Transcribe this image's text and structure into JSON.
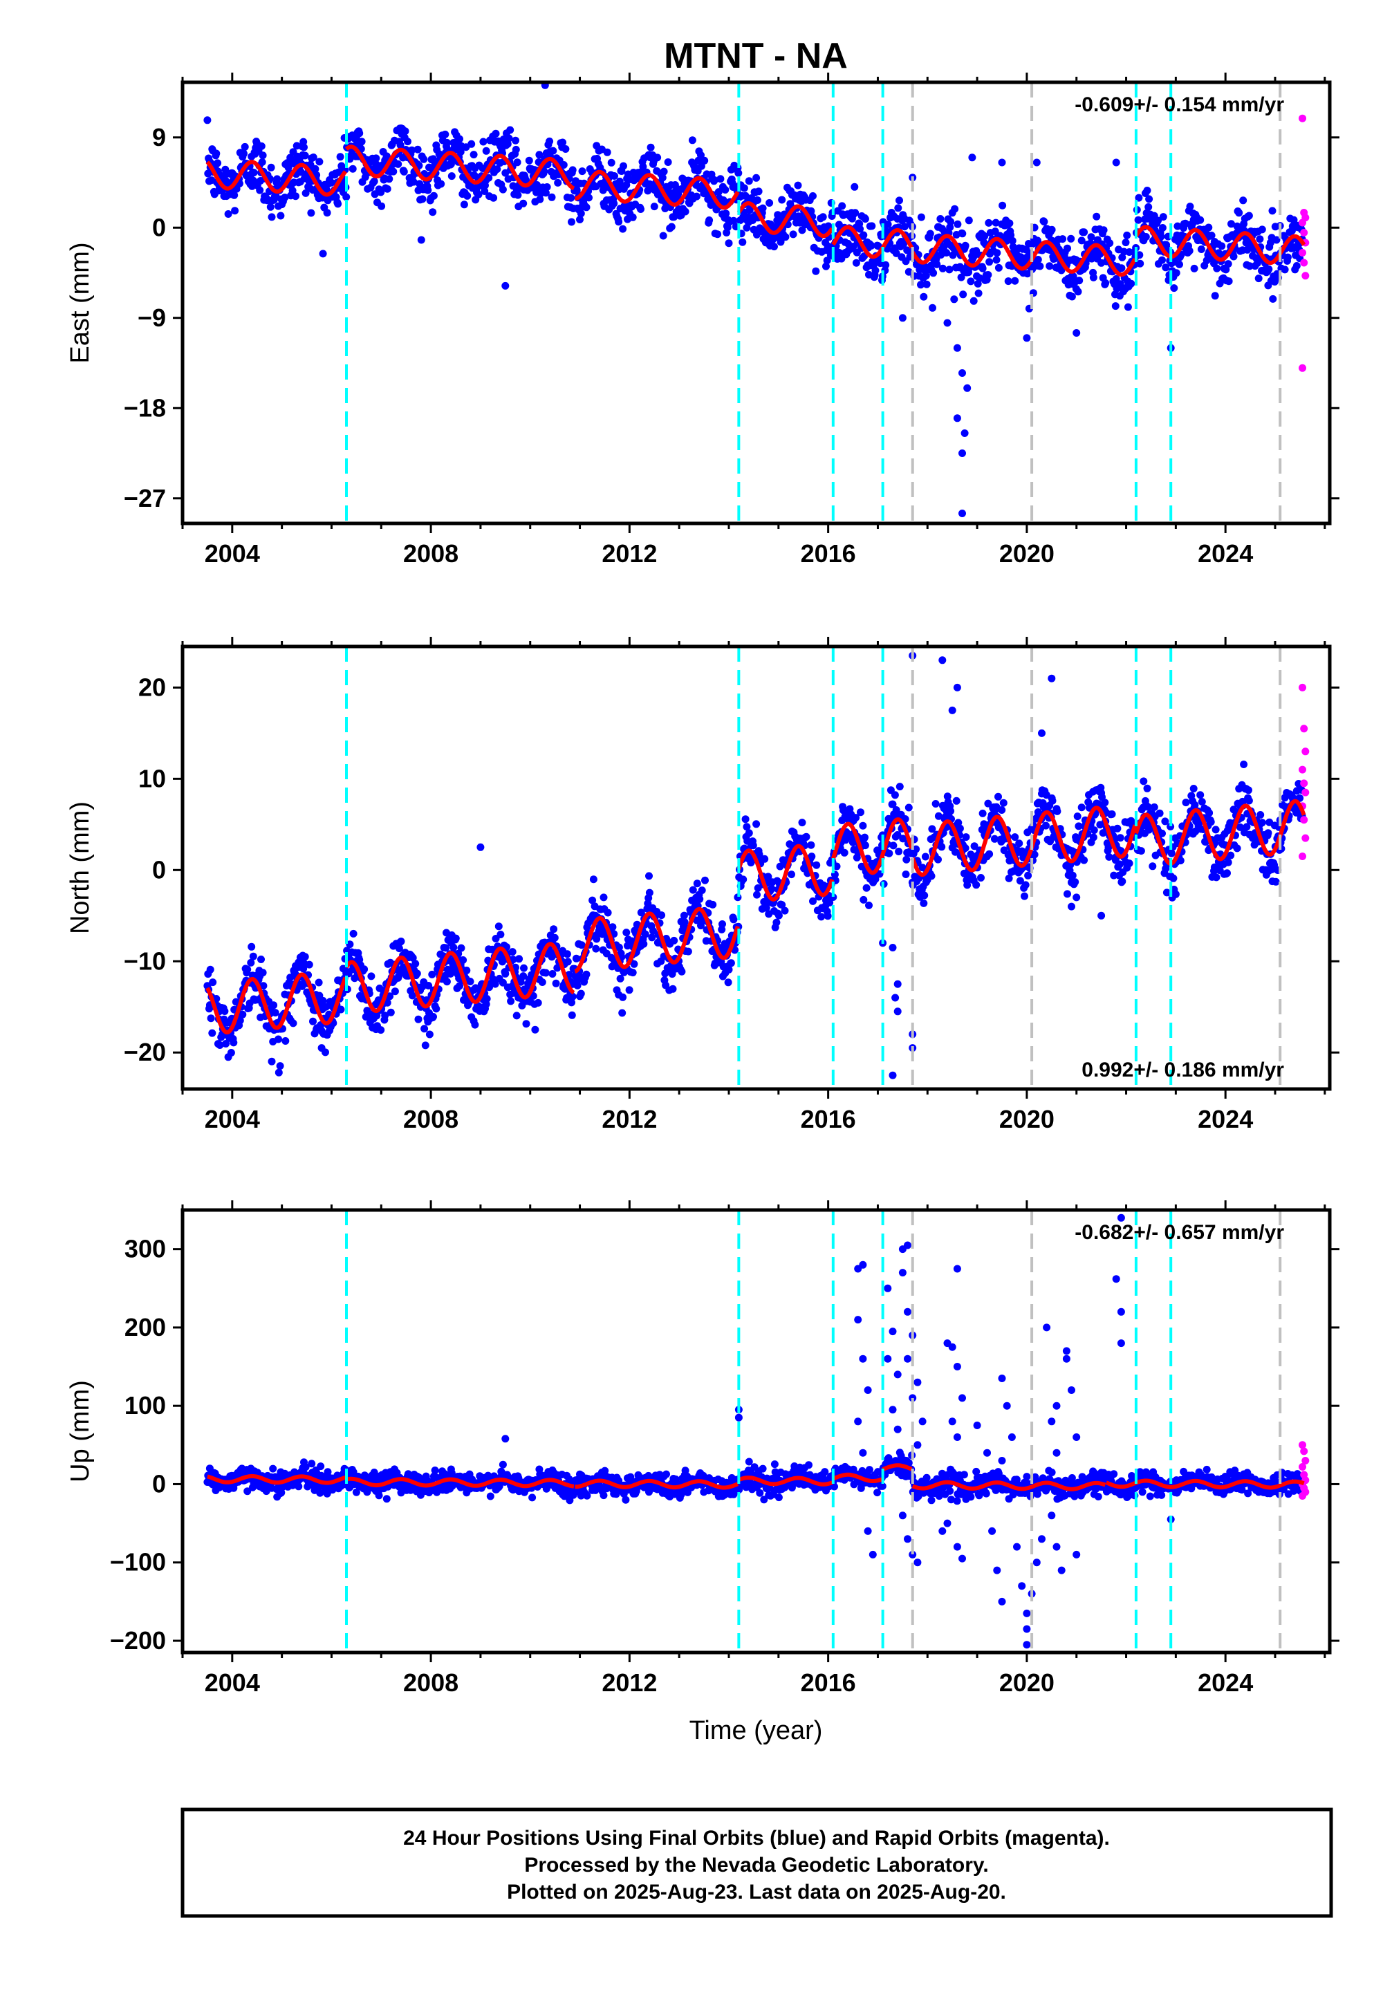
{
  "title": "MTNT - NA",
  "xlabel": "Time (year)",
  "footer": {
    "line1": "24 Hour Positions Using Final Orbits (blue) and Rapid Orbits (magenta).",
    "line2": "Processed by the Nevada Geodetic Laboratory.",
    "line3": "Plotted on 2025-Aug-23. Last data on 2025-Aug-20."
  },
  "colors": {
    "final": "#0000ff",
    "rapid": "#ff00ff",
    "model": "#ff0000",
    "equipment_change": "#00ffff",
    "earthquake": "#c0c0c0"
  },
  "chart_data": [
    {
      "type": "scatter",
      "panel": "east",
      "ylabel": "East (mm)",
      "xlim": [
        2003.0,
        2026.1
      ],
      "ylim": [
        -29.5,
        14.5
      ],
      "xticks": [
        2004,
        2008,
        2012,
        2016,
        2020,
        2024
      ],
      "yticks": [
        9,
        0,
        -9,
        -18,
        -27
      ],
      "ytick_labels": [
        "9",
        "0",
        "−9",
        "−18",
        "−27"
      ],
      "rate_label": "-0.609+/- 0.154 mm/yr",
      "rate_position": "top-right",
      "equipment_change_lines": [
        2006.3,
        2014.2,
        2016.1,
        2017.1,
        2022.2,
        2022.9
      ],
      "earthquake_lines": [
        2017.7,
        2020.1,
        2025.1
      ],
      "model_offsets": [
        {
          "start": 2003.5,
          "end": 2006.3,
          "level": 5.0
        },
        {
          "start": 2006.3,
          "end": 2010.9,
          "level": 6.0
        },
        {
          "start": 2010.9,
          "end": 2014.2,
          "level": 3.8
        },
        {
          "start": 2014.2,
          "end": 2016.1,
          "level": 0.8
        },
        {
          "start": 2016.1,
          "end": 2017.7,
          "level": -1.5
        },
        {
          "start": 2017.7,
          "end": 2022.2,
          "level": -2.7
        },
        {
          "start": 2022.2,
          "end": 2025.6,
          "level": -1.8
        }
      ],
      "rate_mm_per_yr": -0.609,
      "seasonal_amplitude": 1.4,
      "scatter_sd": 1.5,
      "rapid": [
        10.9,
        1.5,
        1.0,
        0.5,
        -0.5,
        -1.5,
        -2.5,
        -3.5,
        -4.8,
        -14.0
      ],
      "outliers": [
        {
          "x": 2009.5,
          "y": -5.8
        },
        {
          "x": 2010.3,
          "y": 14.2
        },
        {
          "x": 2017.5,
          "y": -9.0
        },
        {
          "x": 2018.1,
          "y": -8.0
        },
        {
          "x": 2018.4,
          "y": -9.5
        },
        {
          "x": 2018.6,
          "y": -12.0
        },
        {
          "x": 2018.7,
          "y": -14.5
        },
        {
          "x": 2018.8,
          "y": -16.0
        },
        {
          "x": 2018.6,
          "y": -19.0
        },
        {
          "x": 2018.75,
          "y": -20.5
        },
        {
          "x": 2018.7,
          "y": -22.5
        },
        {
          "x": 2018.7,
          "y": -28.5
        },
        {
          "x": 2020.0,
          "y": -11.0
        },
        {
          "x": 2021.0,
          "y": -10.5
        },
        {
          "x": 2022.9,
          "y": -12.0
        },
        {
          "x": 2018.9,
          "y": 7.0
        },
        {
          "x": 2019.5,
          "y": 6.5
        },
        {
          "x": 2020.2,
          "y": 6.5
        },
        {
          "x": 2021.8,
          "y": 6.5
        },
        {
          "x": 2017.7,
          "y": 5.0
        }
      ]
    },
    {
      "type": "scatter",
      "panel": "north",
      "ylabel": "North (mm)",
      "xlim": [
        2003.0,
        2026.1
      ],
      "ylim": [
        -24.0,
        24.5
      ],
      "xticks": [
        2004,
        2008,
        2012,
        2016,
        2020,
        2024
      ],
      "yticks": [
        20,
        10,
        0,
        -10,
        -20
      ],
      "ytick_labels": [
        "20",
        "10",
        "0",
        "−10",
        "−20"
      ],
      "rate_label": "0.992+/- 0.186 mm/yr",
      "rate_position": "bottom-right",
      "equipment_change_lines": [
        2006.3,
        2014.2,
        2016.1,
        2017.1,
        2022.2,
        2022.9
      ],
      "earthquake_lines": [
        2017.7,
        2020.1,
        2025.1
      ],
      "model_offsets": [
        {
          "start": 2003.5,
          "end": 2006.3,
          "level": -14.5
        },
        {
          "start": 2006.3,
          "end": 2010.9,
          "level": -11.8
        },
        {
          "start": 2010.9,
          "end": 2014.2,
          "level": -7.5
        },
        {
          "start": 2014.2,
          "end": 2016.1,
          "level": -0.3
        },
        {
          "start": 2016.1,
          "end": 2017.7,
          "level": 2.5
        },
        {
          "start": 2017.7,
          "end": 2022.2,
          "level": 3.3
        },
        {
          "start": 2022.2,
          "end": 2025.6,
          "level": 4.0
        }
      ],
      "rate_mm_per_yr": 0.992,
      "seasonal_amplitude": 2.8,
      "scatter_sd": 1.6,
      "rapid": [
        20.0,
        15.5,
        13.0,
        11.0,
        9.5,
        8.5,
        7.0,
        5.5,
        3.5,
        1.5
      ],
      "outliers": [
        {
          "x": 2017.1,
          "y": -8.0
        },
        {
          "x": 2017.3,
          "y": -8.5
        },
        {
          "x": 2017.4,
          "y": -12.5
        },
        {
          "x": 2017.35,
          "y": -14.0
        },
        {
          "x": 2017.4,
          "y": -15.5
        },
        {
          "x": 2017.3,
          "y": -22.5
        },
        {
          "x": 2017.7,
          "y": -18.0
        },
        {
          "x": 2017.7,
          "y": -19.5
        },
        {
          "x": 2017.7,
          "y": 23.5
        },
        {
          "x": 2018.3,
          "y": 23.0
        },
        {
          "x": 2018.6,
          "y": 20.0
        },
        {
          "x": 2018.5,
          "y": 17.5
        },
        {
          "x": 2020.5,
          "y": 21.0
        },
        {
          "x": 2020.3,
          "y": 15.0
        },
        {
          "x": 2021.5,
          "y": -5.0
        },
        {
          "x": 2009.0,
          "y": 2.5
        },
        {
          "x": 2010.1,
          "y": -17.5
        },
        {
          "x": 2005.8,
          "y": -19.5
        },
        {
          "x": 2020.9,
          "y": -4.0
        },
        {
          "x": 2021.0,
          "y": -3.0
        }
      ]
    },
    {
      "type": "scatter",
      "panel": "up",
      "ylabel": "Up (mm)",
      "xlabel": "Time (year)",
      "xlim": [
        2003.0,
        2026.1
      ],
      "ylim": [
        -215,
        350
      ],
      "xticks": [
        2004,
        2008,
        2012,
        2016,
        2020,
        2024
      ],
      "yticks": [
        300,
        200,
        100,
        0,
        -100,
        -200
      ],
      "ytick_labels": [
        "300",
        "200",
        "100",
        "0",
        "−100",
        "−200"
      ],
      "rate_label": "-0.682+/- 0.657 mm/yr",
      "rate_position": "top-right",
      "equipment_change_lines": [
        2006.3,
        2014.2,
        2016.1,
        2017.1,
        2022.2,
        2022.9
      ],
      "earthquake_lines": [
        2017.7,
        2020.1,
        2025.1
      ],
      "model_offsets": [
        {
          "start": 2003.5,
          "end": 2006.3,
          "level": 6.0
        },
        {
          "start": 2006.3,
          "end": 2010.9,
          "level": 2.0
        },
        {
          "start": 2010.9,
          "end": 2014.2,
          "level": 0.0
        },
        {
          "start": 2014.2,
          "end": 2016.1,
          "level": 4.0
        },
        {
          "start": 2016.1,
          "end": 2017.1,
          "level": 8.0
        },
        {
          "start": 2017.1,
          "end": 2017.7,
          "level": 20.0
        },
        {
          "start": 2017.7,
          "end": 2021.6,
          "level": -2.0
        },
        {
          "start": 2021.6,
          "end": 2025.6,
          "level": 0.0
        }
      ],
      "rate_mm_per_yr": -0.682,
      "seasonal_amplitude": 4.0,
      "scatter_sd": 7.0,
      "rapid": [
        50.0,
        42.0,
        30.0,
        22.0,
        12.0,
        5.0,
        0.0,
        -5.0,
        -10.0,
        -15.0
      ],
      "outliers": [
        {
          "x": 2014.2,
          "y": 95
        },
        {
          "x": 2014.2,
          "y": 85
        },
        {
          "x": 2009.5,
          "y": 58
        },
        {
          "x": 2016.6,
          "y": 275
        },
        {
          "x": 2016.7,
          "y": 280
        },
        {
          "x": 2016.6,
          "y": 210
        },
        {
          "x": 2016.7,
          "y": 160
        },
        {
          "x": 2016.8,
          "y": 120
        },
        {
          "x": 2016.6,
          "y": 80
        },
        {
          "x": 2016.7,
          "y": 40
        },
        {
          "x": 2016.8,
          "y": -60
        },
        {
          "x": 2016.9,
          "y": -90
        },
        {
          "x": 2017.2,
          "y": 250
        },
        {
          "x": 2017.3,
          "y": 195
        },
        {
          "x": 2017.2,
          "y": 160
        },
        {
          "x": 2017.4,
          "y": 140
        },
        {
          "x": 2017.3,
          "y": 95
        },
        {
          "x": 2017.4,
          "y": 70
        },
        {
          "x": 2017.5,
          "y": 300
        },
        {
          "x": 2017.6,
          "y": 305
        },
        {
          "x": 2017.5,
          "y": 270
        },
        {
          "x": 2017.6,
          "y": 220
        },
        {
          "x": 2017.7,
          "y": 190
        },
        {
          "x": 2017.6,
          "y": 160
        },
        {
          "x": 2017.8,
          "y": 130
        },
        {
          "x": 2017.7,
          "y": 110
        },
        {
          "x": 2017.9,
          "y": 80
        },
        {
          "x": 2017.8,
          "y": 50
        },
        {
          "x": 2017.5,
          "y": -40
        },
        {
          "x": 2017.6,
          "y": -70
        },
        {
          "x": 2017.7,
          "y": -90
        },
        {
          "x": 2017.8,
          "y": -100
        },
        {
          "x": 2018.6,
          "y": 275
        },
        {
          "x": 2018.4,
          "y": 180
        },
        {
          "x": 2018.5,
          "y": 175
        },
        {
          "x": 2018.6,
          "y": 150
        },
        {
          "x": 2018.7,
          "y": 110
        },
        {
          "x": 2018.5,
          "y": 80
        },
        {
          "x": 2018.6,
          "y": 60
        },
        {
          "x": 2018.4,
          "y": -50
        },
        {
          "x": 2018.6,
          "y": -80
        },
        {
          "x": 2018.7,
          "y": -95
        },
        {
          "x": 2018.3,
          "y": -60
        },
        {
          "x": 2019.0,
          "y": 75
        },
        {
          "x": 2019.2,
          "y": 40
        },
        {
          "x": 2019.3,
          "y": -60
        },
        {
          "x": 2019.4,
          "y": -110
        },
        {
          "x": 2019.5,
          "y": -150
        },
        {
          "x": 2019.5,
          "y": 135
        },
        {
          "x": 2019.6,
          "y": 100
        },
        {
          "x": 2019.7,
          "y": 60
        },
        {
          "x": 2019.5,
          "y": 30
        },
        {
          "x": 2019.8,
          "y": -80
        },
        {
          "x": 2019.9,
          "y": -130
        },
        {
          "x": 2020.0,
          "y": -165
        },
        {
          "x": 2020.0,
          "y": -185
        },
        {
          "x": 2020.0,
          "y": -205
        },
        {
          "x": 2020.1,
          "y": -140
        },
        {
          "x": 2020.2,
          "y": -100
        },
        {
          "x": 2020.3,
          "y": -70
        },
        {
          "x": 2020.4,
          "y": 200
        },
        {
          "x": 2020.5,
          "y": 80
        },
        {
          "x": 2020.6,
          "y": 40
        },
        {
          "x": 2020.5,
          "y": -40
        },
        {
          "x": 2020.6,
          "y": -80
        },
        {
          "x": 2020.7,
          "y": -110
        },
        {
          "x": 2020.6,
          "y": 100
        },
        {
          "x": 2020.8,
          "y": 160
        },
        {
          "x": 2020.9,
          "y": 120
        },
        {
          "x": 2020.8,
          "y": 170
        },
        {
          "x": 2021.0,
          "y": -90
        },
        {
          "x": 2021.0,
          "y": 60
        },
        {
          "x": 2021.8,
          "y": 262
        },
        {
          "x": 2021.9,
          "y": 220
        },
        {
          "x": 2021.9,
          "y": 180
        },
        {
          "x": 2022.9,
          "y": -45
        },
        {
          "x": 2021.9,
          "y": 340
        }
      ]
    }
  ]
}
